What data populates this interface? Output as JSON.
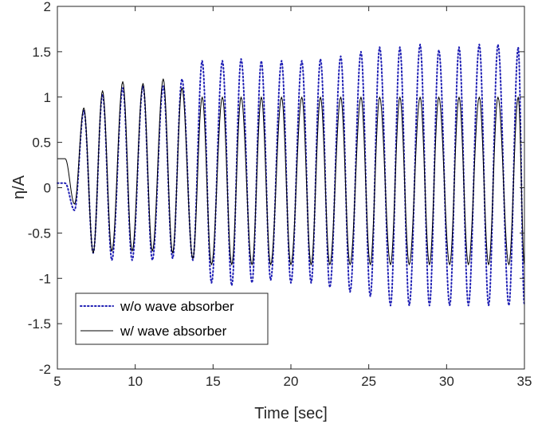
{
  "chart_data": {
    "type": "line",
    "title": "",
    "xlabel": "Time [sec]",
    "ylabel": "η/A",
    "xlim": [
      5,
      35
    ],
    "ylim": [
      -2,
      2
    ],
    "x_ticks": [
      5,
      10,
      15,
      20,
      25,
      30,
      35
    ],
    "x_tick_labels": [
      "5",
      "10",
      "15",
      "20",
      "25",
      "30",
      "35"
    ],
    "y_ticks": [
      -2,
      -1.5,
      -1,
      -0.5,
      0,
      0.5,
      1,
      1.5,
      2
    ],
    "y_tick_labels": [
      "-2",
      "-1.5",
      "-1",
      "-0.5",
      "0",
      "0.5",
      "1",
      "1.5",
      "2"
    ],
    "grid": false,
    "legend_position": "bottom-left",
    "series": [
      {
        "name": "w/o wave absorber",
        "color": "#1f1fb4",
        "style": "dotted",
        "peak_times": [
          6.7,
          7.9,
          9.2,
          10.5,
          11.8,
          13.0,
          14.3,
          15.6,
          16.8,
          18.1,
          19.4,
          20.7,
          21.9,
          23.2,
          24.5,
          25.7,
          27.0,
          28.3,
          29.5,
          30.8,
          32.1,
          33.3,
          34.6
        ],
        "peak_values": [
          0.85,
          1.03,
          1.1,
          1.12,
          1.12,
          1.2,
          1.4,
          1.4,
          1.42,
          1.4,
          1.4,
          1.4,
          1.42,
          1.45,
          1.5,
          1.55,
          1.55,
          1.58,
          1.52,
          1.55,
          1.58,
          1.58,
          1.55
        ],
        "trough_times": [
          6.1,
          7.3,
          8.5,
          9.8,
          11.1,
          12.4,
          13.7,
          14.9,
          16.2,
          17.5,
          18.7,
          20.0,
          21.3,
          22.5,
          23.8,
          25.1,
          26.4,
          27.6,
          28.9,
          30.2,
          31.4,
          32.7,
          34.0,
          35.0
        ],
        "trough_values": [
          -0.25,
          -0.72,
          -0.8,
          -0.8,
          -0.8,
          -0.78,
          -0.8,
          -1.05,
          -1.08,
          -1.05,
          -1.02,
          -1.05,
          -1.05,
          -1.1,
          -1.15,
          -1.2,
          -1.3,
          -1.3,
          -1.3,
          -1.3,
          -1.3,
          -1.3,
          -1.3,
          -1.3
        ],
        "start_value": 0.05
      },
      {
        "name": "w/ wave absorber",
        "color": "#000000",
        "style": "solid",
        "peak_times": [
          6.7,
          7.9,
          9.2,
          10.5,
          11.8,
          13.0,
          14.3,
          15.6,
          16.8,
          18.1,
          19.4,
          20.7,
          21.9,
          23.2,
          24.5,
          25.7,
          27.0,
          28.3,
          29.5,
          30.8,
          32.1,
          33.3,
          34.6
        ],
        "peak_values": [
          0.88,
          1.07,
          1.17,
          1.15,
          1.2,
          1.1,
          1.0,
          1.0,
          1.0,
          1.0,
          1.0,
          1.0,
          1.0,
          1.0,
          1.0,
          1.0,
          1.0,
          1.0,
          1.0,
          1.0,
          1.0,
          1.0,
          1.0
        ],
        "trough_times": [
          6.1,
          7.3,
          8.5,
          9.8,
          11.1,
          12.4,
          13.7,
          14.9,
          16.2,
          17.5,
          18.7,
          20.0,
          21.3,
          22.5,
          23.8,
          25.1,
          26.4,
          27.6,
          28.9,
          30.2,
          31.4,
          32.7,
          34.0,
          35.0
        ],
        "trough_values": [
          -0.18,
          -0.72,
          -0.7,
          -0.7,
          -0.7,
          -0.72,
          -0.78,
          -0.85,
          -0.85,
          -0.85,
          -0.85,
          -0.85,
          -0.85,
          -0.85,
          -0.85,
          -0.85,
          -0.85,
          -0.85,
          -0.85,
          -0.85,
          -0.85,
          -0.85,
          -0.85,
          -0.85
        ],
        "start_value": 0.32,
        "end_value": 1.0
      }
    ]
  }
}
